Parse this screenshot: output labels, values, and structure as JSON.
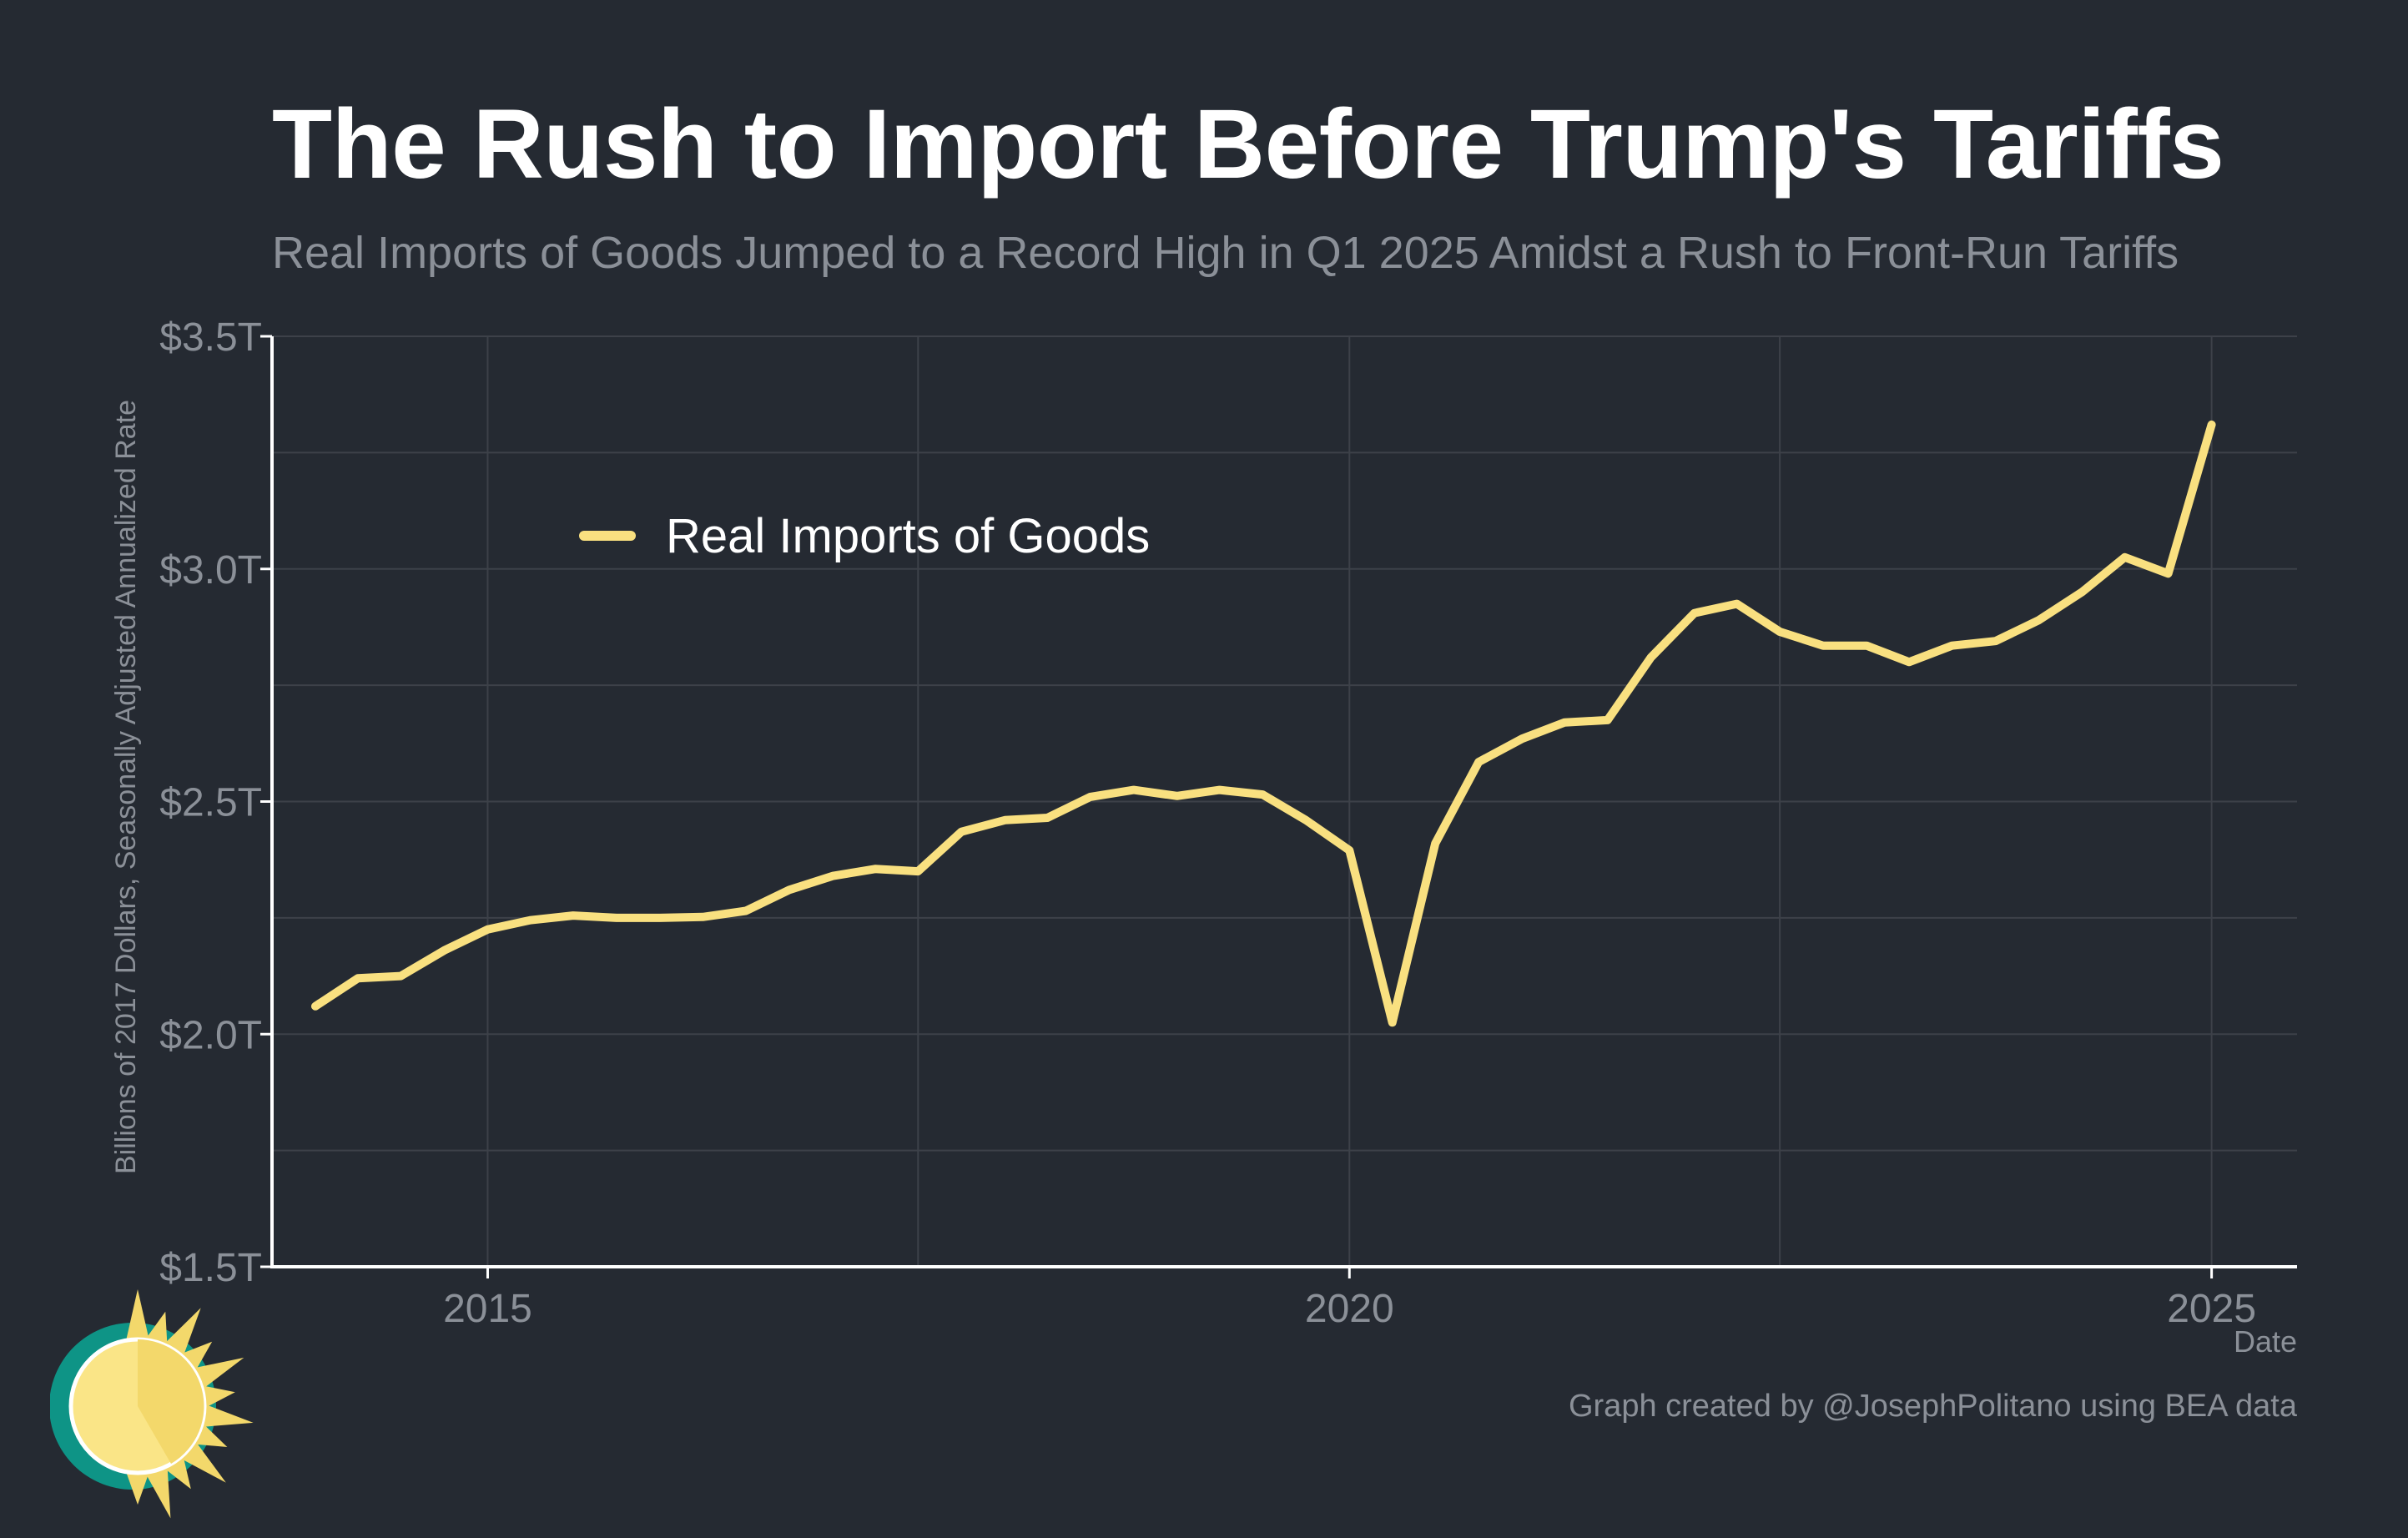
{
  "header": {
    "title": "The Rush to Import Before Trump's Tariffs",
    "subtitle": "Real Imports of Goods Jumped to a Record High in Q1 2025 Amidst a Rush to Front-Run Tariffs"
  },
  "footer": {
    "caption": "Graph created by @JosephPolitano using BEA data"
  },
  "colors": {
    "background": "#252a32",
    "line": "#f9e080",
    "grid": "#3d4149",
    "axis": "#ffffff",
    "muted_text": "#8b9098",
    "logo_teal": "#0e9486",
    "logo_sun": "#fae587",
    "logo_sun_shade": "#f3d86b"
  },
  "logo": {
    "icon": "sun-logo-icon"
  },
  "chart_data": {
    "type": "line",
    "title": "The Rush to Import Before Trump's Tariffs",
    "subtitle": "Real Imports of Goods Jumped to a Record High in Q1 2025 Amidst a Rush to Front-Run Tariffs",
    "xlabel": "Date",
    "ylabel": "Billions of 2017 Dollars, Seasonally Adjusted Annualized Rate",
    "xlim": [
      "2013-10-01",
      "2025-07-01"
    ],
    "ylim": [
      1.5,
      3.5
    ],
    "x_ticks": [
      {
        "date": "2015-01-01",
        "label": "2015"
      },
      {
        "date": "2020-01-01",
        "label": "2020"
      },
      {
        "date": "2025-01-01",
        "label": "2025"
      }
    ],
    "x_minor_grid": [
      "2017-07-01",
      "2022-07-01"
    ],
    "y_ticks": [
      {
        "value": 1.5,
        "label": "$1.5T"
      },
      {
        "value": 2.0,
        "label": "$2.0T"
      },
      {
        "value": 2.5,
        "label": "$2.5T"
      },
      {
        "value": 3.0,
        "label": "$3.0T"
      },
      {
        "value": 3.5,
        "label": "$3.5T"
      }
    ],
    "y_minor_grid": [
      1.75,
      2.25,
      2.75,
      3.25
    ],
    "grid": true,
    "legend_position": "top-left",
    "series": [
      {
        "name": "Real Imports of Goods",
        "color": "#f9e080",
        "x": [
          "2014-01-01",
          "2014-04-01",
          "2014-07-01",
          "2014-10-01",
          "2015-01-01",
          "2015-04-01",
          "2015-07-01",
          "2015-10-01",
          "2016-01-01",
          "2016-04-01",
          "2016-07-01",
          "2016-10-01",
          "2017-01-01",
          "2017-04-01",
          "2017-07-01",
          "2017-10-01",
          "2018-01-01",
          "2018-04-01",
          "2018-07-01",
          "2018-10-01",
          "2019-01-01",
          "2019-04-01",
          "2019-07-01",
          "2019-10-01",
          "2020-01-01",
          "2020-04-01",
          "2020-07-01",
          "2020-10-01",
          "2021-01-01",
          "2021-04-01",
          "2021-07-01",
          "2021-10-01",
          "2022-01-01",
          "2022-04-01",
          "2022-07-01",
          "2022-10-01",
          "2023-01-01",
          "2023-04-01",
          "2023-07-01",
          "2023-10-01",
          "2024-01-01",
          "2024-04-01",
          "2024-07-01",
          "2024-10-01",
          "2025-01-01"
        ],
        "values": [
          2.06,
          2.12,
          2.125,
          2.18,
          2.225,
          2.245,
          2.255,
          2.25,
          2.25,
          2.252,
          2.265,
          2.31,
          2.34,
          2.355,
          2.35,
          2.435,
          2.46,
          2.465,
          2.51,
          2.525,
          2.512,
          2.525,
          2.515,
          2.46,
          2.395,
          2.025,
          2.41,
          2.585,
          2.635,
          2.67,
          2.675,
          2.81,
          2.905,
          2.925,
          2.865,
          2.835,
          2.835,
          2.8,
          2.835,
          2.845,
          2.89,
          2.95,
          3.025,
          2.99,
          3.31
        ]
      }
    ]
  }
}
